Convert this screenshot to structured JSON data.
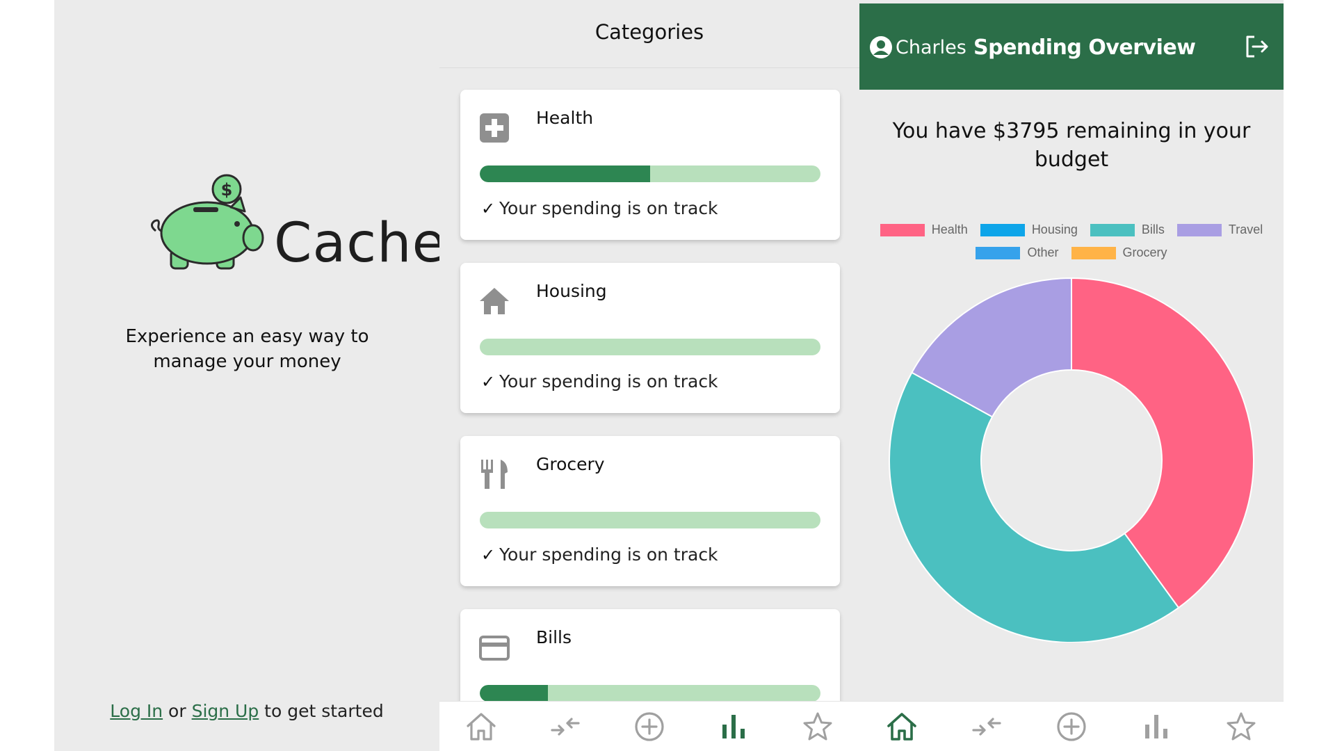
{
  "landing": {
    "app_name": "Cache",
    "logo_coin_symbol": "$",
    "tagline": "Experience an easy way to manage your money",
    "login_link": "Log In",
    "or_text": " or ",
    "signup_link": "Sign Up",
    "suffix_text": " to get started",
    "brand_color": "#2b6e48",
    "pig_color": "#7ed88f"
  },
  "categories_screen": {
    "title": "Categories",
    "cards": [
      {
        "name": "Health",
        "icon": "health-plus-icon",
        "progress": 0.5,
        "status": "Your spending is on track"
      },
      {
        "name": "Housing",
        "icon": "home-icon",
        "progress": 0,
        "status": "Your spending is on track"
      },
      {
        "name": "Grocery",
        "icon": "fork-knife-icon",
        "progress": 0,
        "status": "Your spending is on track"
      },
      {
        "name": "Bills",
        "icon": "credit-card-icon",
        "progress": 0.2,
        "status": ""
      }
    ],
    "bar_fill_color": "#2d8652",
    "bar_track_color": "#b8e0bc"
  },
  "overview": {
    "user": "Charles",
    "title": "Spending Overview",
    "remaining": "You have $3795 remaining in your budget",
    "header_color": "#2b6e48"
  },
  "nav_icons": [
    "home-icon",
    "transfer-icon",
    "add-circle-icon",
    "bar-chart-icon",
    "star-icon"
  ],
  "categories_nav_active": "bar-chart-icon",
  "overview_nav_active": "home-icon",
  "chart_data": {
    "type": "pie",
    "donut": true,
    "legend_position": "top",
    "categories": [
      "Health",
      "Housing",
      "Bills",
      "Travel",
      "Other",
      "Grocery"
    ],
    "colors": [
      "#ff6384",
      "#0ea5e9",
      "#4bc0c0",
      "#a99ee3",
      "#36a2eb",
      "#ffb347"
    ],
    "values": [
      40,
      0,
      43,
      17,
      0,
      0
    ]
  }
}
